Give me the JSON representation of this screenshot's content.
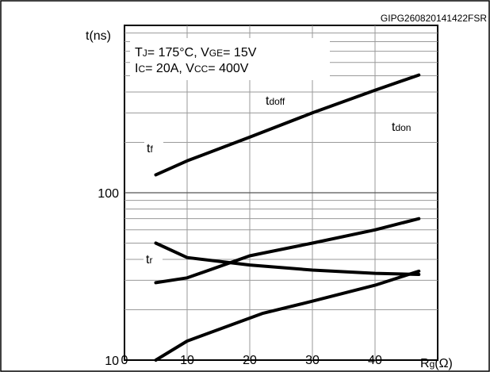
{
  "header": {
    "code": "GIPG260820141422FSR"
  },
  "chart_data": {
    "type": "line",
    "y_scale": "log",
    "x_range": [
      0,
      50
    ],
    "y_range": [
      10,
      1000
    ],
    "grid": true,
    "ylabel": "t(ns)",
    "xlabel": {
      "main": "R",
      "sub": "g",
      "unit": "(Ω)"
    },
    "x_ticks": [
      "0",
      "10",
      "20",
      "30",
      "40"
    ],
    "x_tick_values": [
      0,
      10,
      20,
      30,
      40
    ],
    "y_ticks": [
      "10",
      "100"
    ],
    "y_tick_values": [
      10,
      100
    ],
    "conditions": [
      {
        "parts": [
          [
            "T",
            ""
          ],
          [
            "J",
            "sub"
          ],
          [
            "= 175°C, V",
            ""
          ],
          [
            "GE",
            "sub"
          ],
          [
            "= 15V",
            ""
          ]
        ]
      },
      {
        "parts": [
          [
            "I",
            ""
          ],
          [
            "C",
            "sub"
          ],
          [
            "= 20A, V",
            ""
          ],
          [
            "CC",
            "sub"
          ],
          [
            "= 400V",
            ""
          ]
        ]
      }
    ],
    "series": [
      {
        "name": "t",
        "sub": "doff",
        "x": [
          5,
          10,
          20,
          30,
          40,
          47
        ],
        "y": [
          128,
          155,
          215,
          300,
          410,
          505
        ]
      },
      {
        "name": "t",
        "sub": "don",
        "x": [
          5,
          10,
          20,
          30,
          40,
          47
        ],
        "y": [
          29,
          31,
          42,
          50,
          60,
          70
        ]
      },
      {
        "name": "t",
        "sub": "f",
        "x": [
          5,
          10,
          20,
          30,
          40,
          47
        ],
        "y": [
          50,
          41,
          37,
          34.5,
          33,
          32.5
        ]
      },
      {
        "name": "t",
        "sub": "r",
        "x": [
          5,
          10,
          22,
          30,
          40,
          47
        ],
        "y": [
          10,
          13,
          19,
          22.5,
          28,
          34
        ]
      }
    ]
  }
}
